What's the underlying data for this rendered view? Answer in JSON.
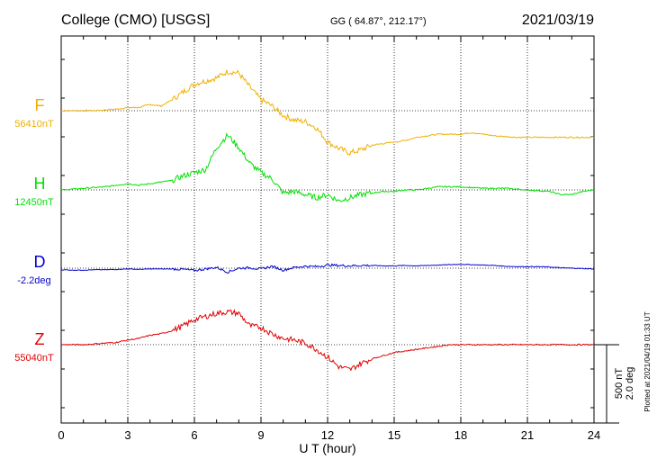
{
  "header": {
    "station": "College (CMO)  [USGS]",
    "coords": "GG ( 64.87°, 212.17°)",
    "date": "2021/03/19"
  },
  "footer": {
    "plotted": "Plotted at 2021/04/19 01:33 UT"
  },
  "colors": {
    "F": "#f0b000",
    "H": "#00e000",
    "D": "#0000d0",
    "Z": "#e00000",
    "axis": "#000000",
    "grid": "#000000"
  },
  "chart_data": {
    "type": "line",
    "xlabel": "U T (hour)",
    "xlim": [
      0,
      24
    ],
    "x_ticks": [
      0,
      3,
      6,
      9,
      12,
      15,
      18,
      21,
      24
    ],
    "scale": {
      "nT_label": "500 nT",
      "deg_label": "2.0 deg",
      "nT": 500,
      "deg": 2.0
    },
    "series": [
      {
        "name": "F",
        "baseline_label": "56410nT",
        "baseline_value": 56410,
        "unit": "nT",
        "x": [
          0,
          0.5,
          1,
          1.5,
          2,
          2.5,
          3,
          3.5,
          4,
          4.5,
          5,
          5.5,
          6,
          6.5,
          7,
          7.5,
          8,
          8.5,
          9,
          9.5,
          10,
          10.5,
          11,
          11.5,
          12,
          12.5,
          13,
          13.5,
          14,
          14.5,
          15,
          15.5,
          16,
          16.5,
          17,
          17.5,
          18,
          18.5,
          19,
          19.5,
          20,
          20.5,
          21,
          21.5,
          22,
          22.5,
          23,
          23.5,
          24
        ],
        "y": [
          56410,
          56410,
          56410,
          56410,
          56415,
          56420,
          56430,
          56430,
          56450,
          56440,
          56480,
          56530,
          56580,
          56600,
          56620,
          56660,
          56650,
          56560,
          56480,
          56440,
          56380,
          56350,
          56340,
          56300,
          56210,
          56170,
          56140,
          56160,
          56190,
          56200,
          56210,
          56220,
          56240,
          56250,
          56260,
          56260,
          56260,
          56270,
          56260,
          56250,
          56245,
          56240,
          56240,
          56240,
          56240,
          56240,
          56240,
          56240,
          56240
        ]
      },
      {
        "name": "H",
        "baseline_label": "12450nT",
        "baseline_value": 12450,
        "unit": "nT",
        "x": [
          0,
          0.5,
          1,
          1.5,
          2,
          2.5,
          3,
          3.5,
          4,
          4.5,
          5,
          5.5,
          6,
          6.5,
          7,
          7.5,
          8,
          8.5,
          9,
          9.5,
          10,
          10.5,
          11,
          11.5,
          12,
          12.5,
          13,
          13.5,
          14,
          14.5,
          15,
          15.5,
          16,
          16.5,
          17,
          17.5,
          18,
          18.5,
          19,
          19.5,
          20,
          20.5,
          21,
          21.5,
          22,
          22.5,
          23,
          23.5,
          24
        ],
        "y": [
          12450,
          12455,
          12460,
          12465,
          12470,
          12480,
          12490,
          12480,
          12490,
          12500,
          12510,
          12540,
          12560,
          12580,
          12720,
          12800,
          12720,
          12620,
          12560,
          12520,
          12430,
          12440,
          12420,
          12400,
          12420,
          12380,
          12400,
          12420,
          12430,
          12440,
          12440,
          12450,
          12450,
          12460,
          12470,
          12470,
          12470,
          12465,
          12460,
          12460,
          12460,
          12455,
          12450,
          12445,
          12440,
          12420,
          12420,
          12440,
          12450
        ]
      },
      {
        "name": "D",
        "baseline_label": "-2.2deg",
        "baseline_value": -2.2,
        "unit": "deg",
        "x": [
          0,
          0.5,
          1,
          1.5,
          2,
          2.5,
          3,
          3.5,
          4,
          4.5,
          5,
          5.5,
          6,
          6.5,
          7,
          7.5,
          8,
          8.5,
          9,
          9.5,
          10,
          10.5,
          11,
          11.5,
          12,
          12.5,
          13,
          13.5,
          14,
          14.5,
          15,
          15.5,
          16,
          16.5,
          17,
          17.5,
          18,
          18.5,
          19,
          19.5,
          20,
          20.5,
          21,
          21.5,
          22,
          22.5,
          23,
          23.5,
          24
        ],
        "y": [
          -2.24,
          -2.25,
          -2.25,
          -2.24,
          -2.24,
          -2.23,
          -2.22,
          -2.23,
          -2.22,
          -2.22,
          -2.22,
          -2.23,
          -2.26,
          -2.22,
          -2.18,
          -2.3,
          -2.2,
          -2.19,
          -2.22,
          -2.15,
          -2.25,
          -2.18,
          -2.15,
          -2.16,
          -2.12,
          -2.13,
          -2.14,
          -2.13,
          -2.13,
          -2.14,
          -2.14,
          -2.13,
          -2.14,
          -2.13,
          -2.12,
          -2.11,
          -2.1,
          -2.11,
          -2.12,
          -2.13,
          -2.15,
          -2.16,
          -2.16,
          -2.16,
          -2.17,
          -2.19,
          -2.2,
          -2.21,
          -2.22
        ]
      },
      {
        "name": "Z",
        "baseline_label": "55040nT",
        "baseline_value": 55040,
        "unit": "nT",
        "x": [
          0,
          0.5,
          1,
          1.5,
          2,
          2.5,
          3,
          3.5,
          4,
          4.5,
          5,
          5.5,
          6,
          6.5,
          7,
          7.5,
          8,
          8.5,
          9,
          9.5,
          10,
          10.5,
          11,
          11.5,
          12,
          12.5,
          13,
          13.5,
          14,
          14.5,
          15,
          15.5,
          16,
          16.5,
          17,
          17.5,
          18,
          18.5,
          19,
          19.5,
          20,
          20.5,
          21,
          21.5,
          22,
          22.5,
          23,
          23.5,
          24
        ],
        "y": [
          55040,
          55040,
          55040,
          55045,
          55050,
          55055,
          55070,
          55080,
          55100,
          55110,
          55130,
          55160,
          55200,
          55220,
          55240,
          55250,
          55240,
          55160,
          55150,
          55110,
          55080,
          55070,
          55050,
          55010,
          54960,
          54900,
          54880,
          54920,
          54950,
          54970,
          54990,
          55000,
          55010,
          55020,
          55030,
          55040,
          55040,
          55040,
          55040,
          55040,
          55040,
          55040,
          55040,
          55040,
          55040,
          55040,
          55040,
          55040,
          55040
        ]
      }
    ]
  }
}
